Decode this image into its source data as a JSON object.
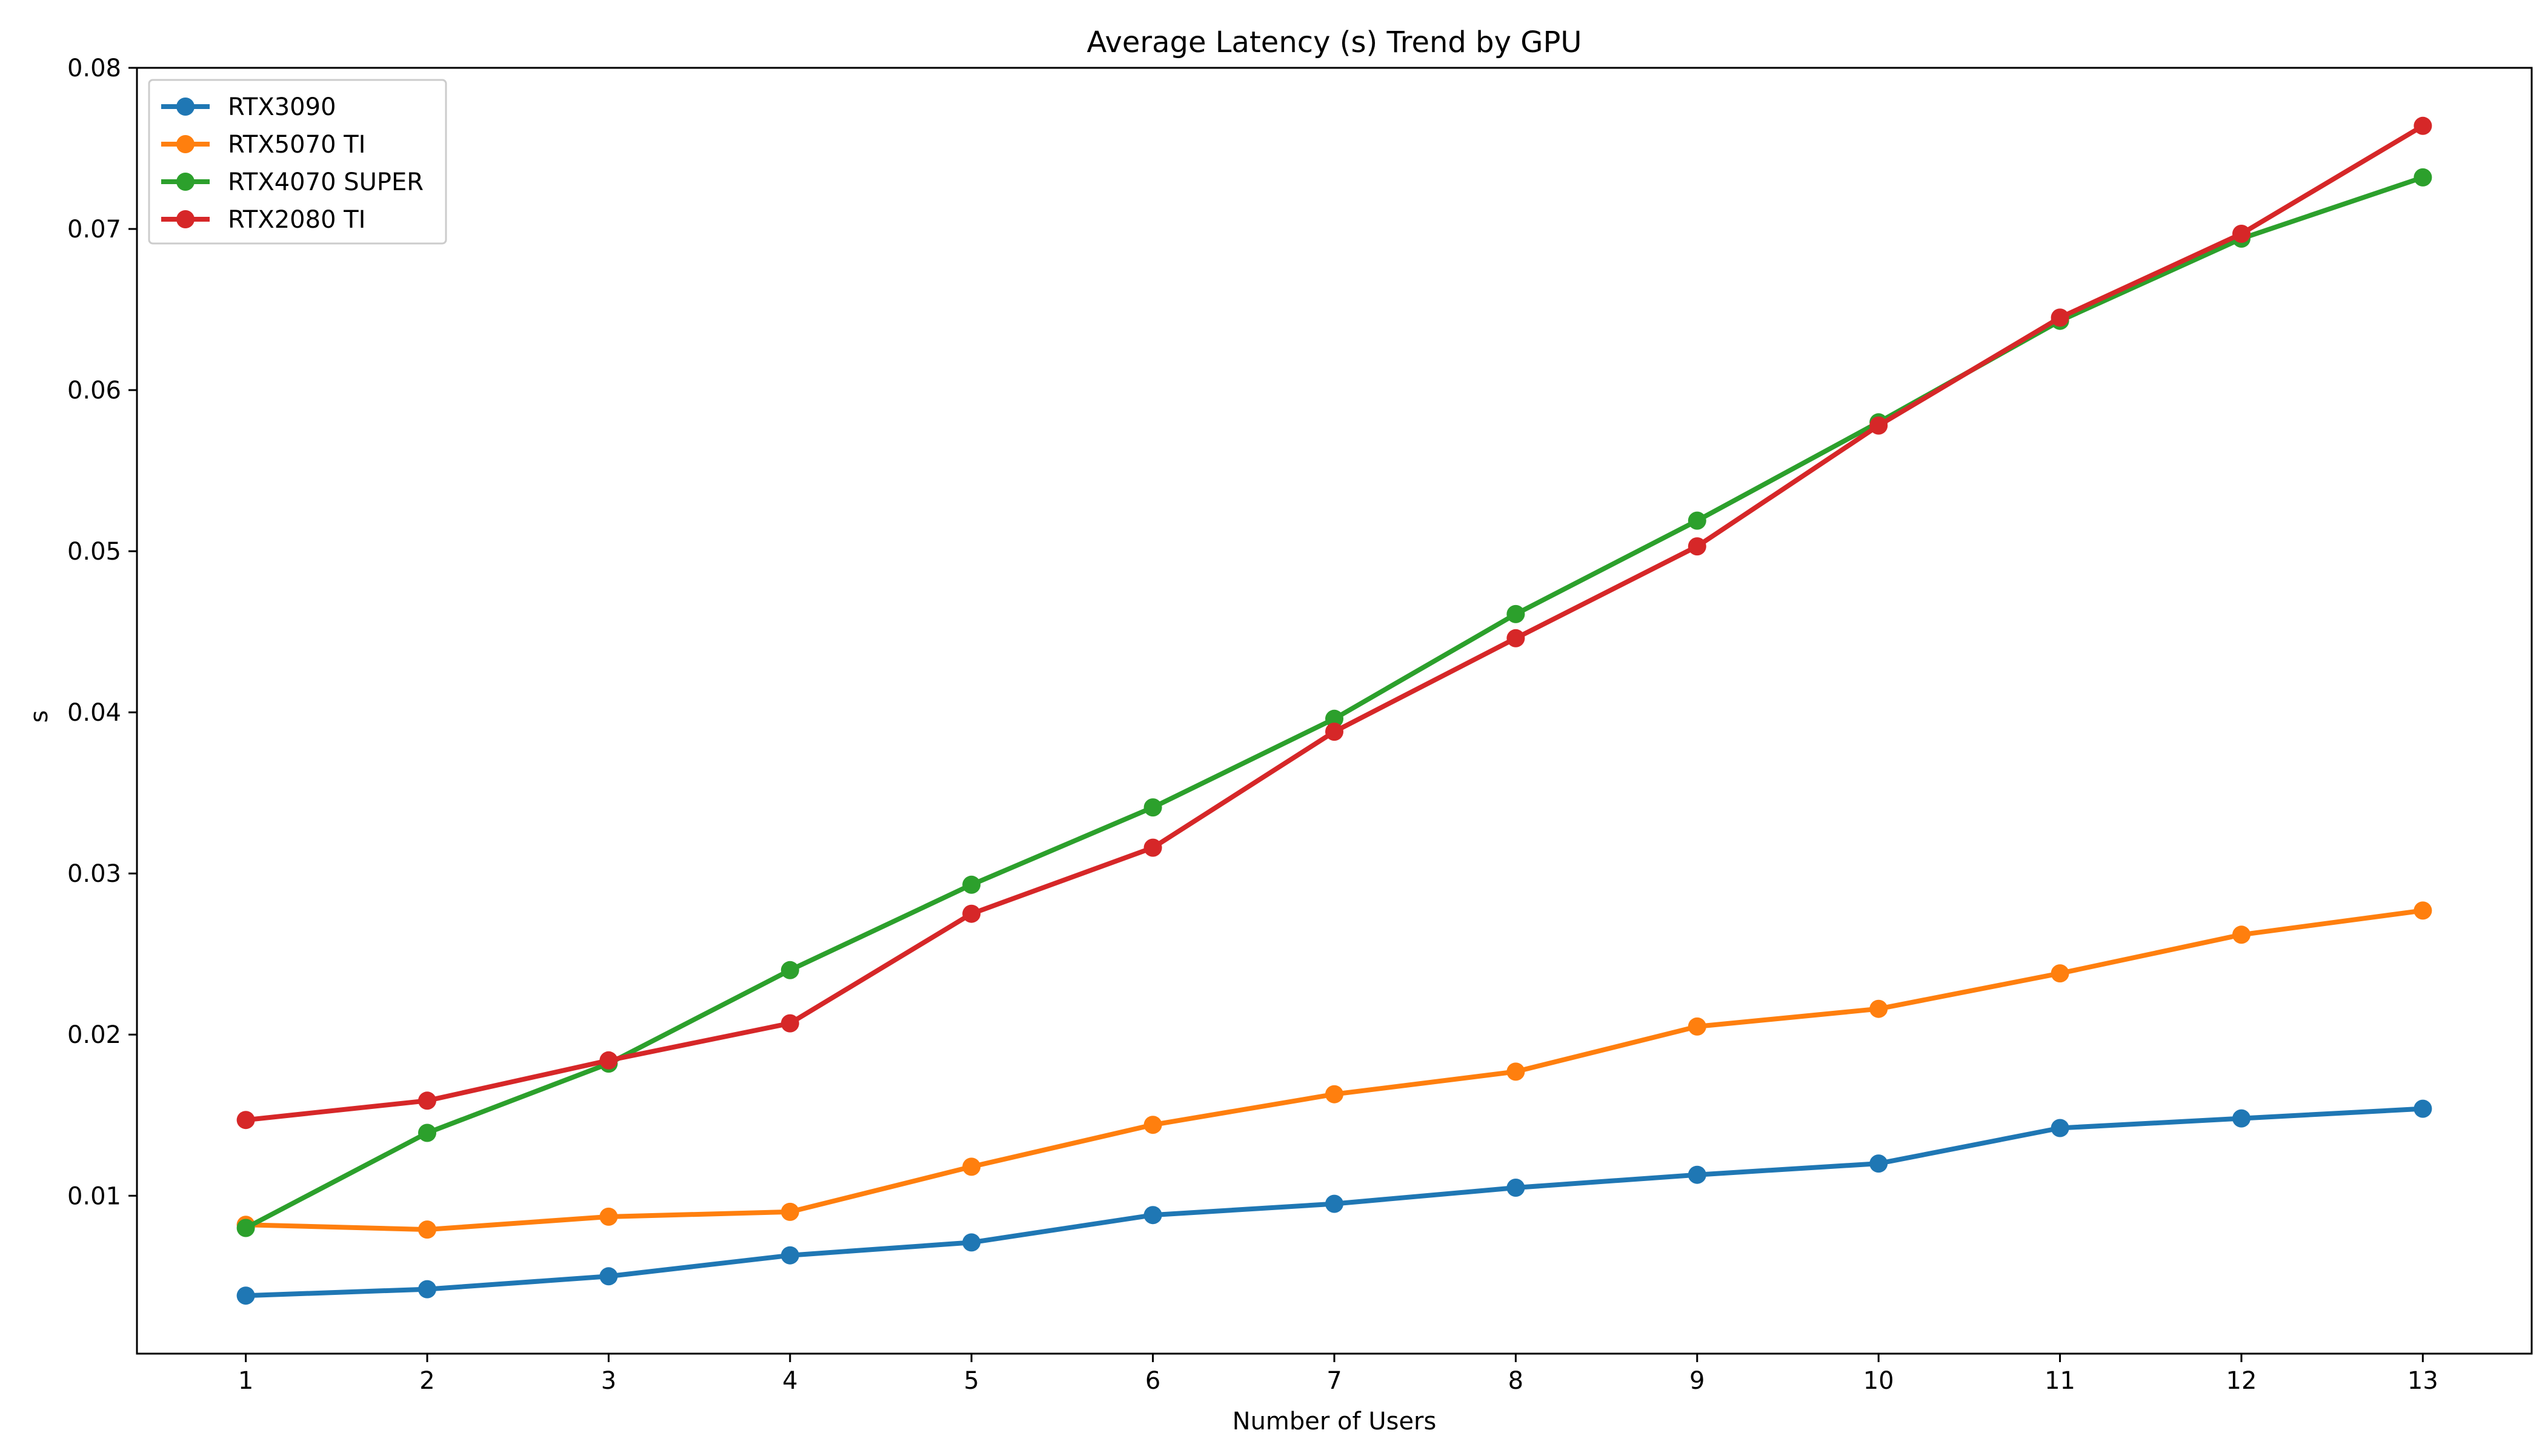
{
  "chart_data": {
    "type": "line",
    "title": "Average Latency (s) Trend by GPU",
    "xlabel": "Number of Users",
    "ylabel": "s",
    "x": [
      1,
      2,
      3,
      4,
      5,
      6,
      7,
      8,
      9,
      10,
      11,
      12,
      13
    ],
    "xlim": [
      0.4,
      13.6
    ],
    "ylim": [
      0.0002,
      0.08
    ],
    "yticks": [
      0.01,
      0.02,
      0.03,
      0.04,
      0.05,
      0.06,
      0.07,
      0.08
    ],
    "ytick_labels": [
      "0.01",
      "0.02",
      "0.03",
      "0.04",
      "0.05",
      "0.06",
      "0.07",
      "0.08"
    ],
    "xtick_labels": [
      "1",
      "2",
      "3",
      "4",
      "5",
      "6",
      "7",
      "8",
      "9",
      "10",
      "11",
      "12",
      "13"
    ],
    "grid": false,
    "legend_position": "top-left",
    "series": [
      {
        "name": "RTX3090",
        "color": "#1f77b4",
        "values": [
          0.0038,
          0.0042,
          0.005,
          0.0063,
          0.0071,
          0.0088,
          0.0095,
          0.0105,
          0.0113,
          0.012,
          0.0142,
          0.0148,
          0.0154
        ]
      },
      {
        "name": "RTX5070 TI",
        "color": "#ff7f0e",
        "values": [
          0.0082,
          0.0079,
          0.0087,
          0.009,
          0.0118,
          0.0144,
          0.0163,
          0.0177,
          0.0205,
          0.0216,
          0.0238,
          0.0262,
          0.0277
        ]
      },
      {
        "name": "RTX4070 SUPER",
        "color": "#2ca02c",
        "values": [
          0.008,
          0.0139,
          0.0182,
          0.024,
          0.0293,
          0.0341,
          0.0396,
          0.0461,
          0.0519,
          0.058,
          0.0643,
          0.0694,
          0.0732
        ]
      },
      {
        "name": "RTX2080 TI",
        "color": "#d62728",
        "values": [
          0.0147,
          0.0159,
          0.0184,
          0.0207,
          0.0275,
          0.0316,
          0.0388,
          0.0446,
          0.0503,
          0.0578,
          0.0645,
          0.0697,
          0.0764
        ]
      }
    ]
  }
}
